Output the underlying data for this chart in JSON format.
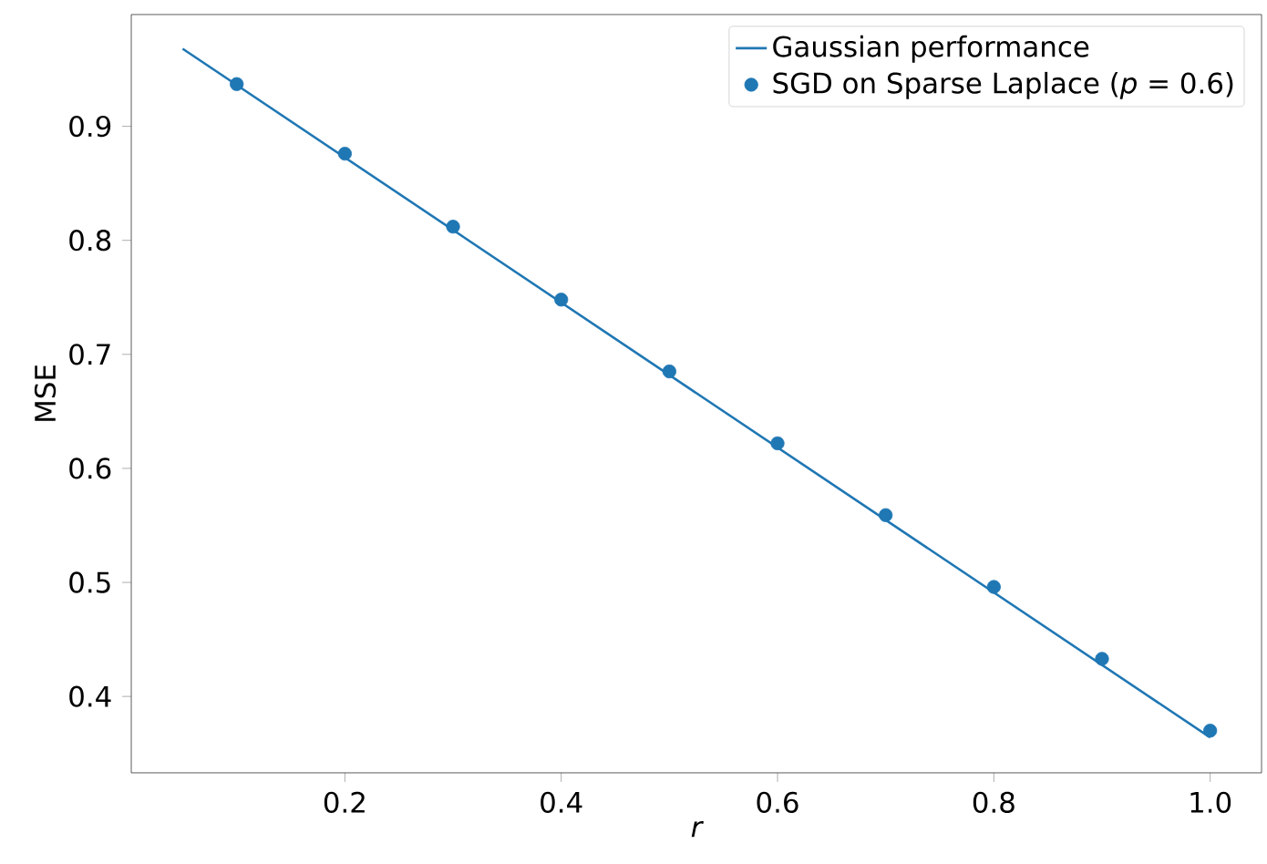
{
  "chart_data": {
    "type": "line",
    "xlabel": "r",
    "ylabel": "MSE",
    "xlim": [
      0.0025,
      1.0475
    ],
    "ylim": [
      0.333,
      0.998
    ],
    "xticks": [
      0.2,
      0.4,
      0.6,
      0.8,
      {
        "value": 1.0,
        "label": "1.0"
      }
    ],
    "yticks": [
      0.4,
      0.5,
      0.6,
      0.7,
      0.8,
      0.9
    ],
    "legend": "top right",
    "series": [
      {
        "name": "Gaussian performance",
        "color": "#1f77b4",
        "marker": "none",
        "line_style": "solid",
        "x": [
          0.05,
          1.0
        ],
        "values": [
          0.968,
          0.364
        ]
      },
      {
        "name": "SGD on Sparse Laplace (*p* = 0.6)",
        "type": "scatter",
        "color": "#1f77b4",
        "marker": "circle",
        "x": [
          0.1,
          0.2,
          0.3,
          0.4,
          0.5,
          0.6,
          0.7,
          0.8,
          0.9,
          1.0
        ],
        "values": [
          0.937,
          0.876,
          0.812,
          0.748,
          0.685,
          0.622,
          0.559,
          0.496,
          0.433,
          0.37
        ]
      }
    ]
  }
}
